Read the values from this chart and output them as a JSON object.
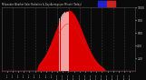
{
  "bg_color": "#0a0a0a",
  "plot_bg_color": "#0a0a0a",
  "grid_color": "#555555",
  "red_fill_color": "#dd0000",
  "blue_legend_color": "#2222cc",
  "red_legend_color": "#cc2222",
  "text_color": "#cccccc",
  "num_points": 480,
  "peak_index": 240,
  "peak_value": 950,
  "y_max": 1000,
  "y_ticks": [
    200,
    400,
    600,
    800,
    1000
  ],
  "spike_positions": [
    205,
    210,
    215,
    218,
    222,
    225,
    228,
    232,
    235,
    238
  ],
  "spike_heights": [
    850,
    870,
    900,
    920,
    930,
    940,
    935,
    910,
    880,
    850
  ],
  "grid_x_fracs": [
    0.083,
    0.167,
    0.25,
    0.333,
    0.417,
    0.5,
    0.583,
    0.667,
    0.75,
    0.833,
    0.917
  ],
  "start_hour": 0,
  "end_hour": 24,
  "x_tick_hours": [
    1,
    2,
    3,
    4,
    5,
    6,
    7,
    8,
    9,
    10,
    11,
    12,
    13,
    14,
    15,
    16,
    17,
    18,
    19,
    20,
    21,
    22,
    23
  ]
}
